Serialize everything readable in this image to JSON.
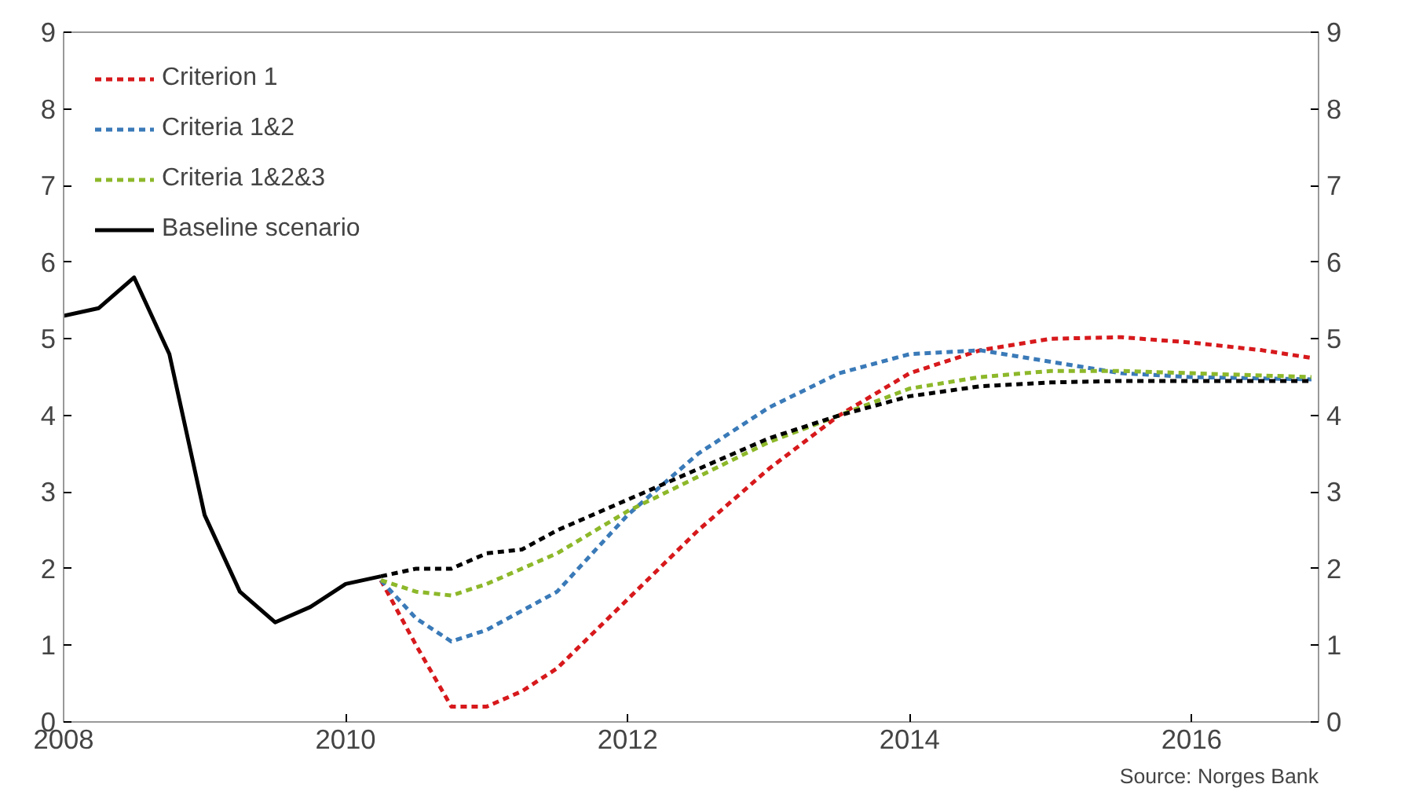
{
  "chart_data": {
    "type": "line",
    "xlim": [
      2008,
      2016.9
    ],
    "xticks": [
      2008,
      2010,
      2012,
      2014,
      2016
    ],
    "ylim": [
      0,
      9
    ],
    "yticks": [
      0,
      1,
      2,
      3,
      4,
      5,
      6,
      7,
      8,
      9
    ],
    "y2lim": [
      0,
      9
    ],
    "y2ticks": [
      0,
      1,
      2,
      3,
      4,
      5,
      6,
      7,
      8,
      9
    ],
    "grid": false,
    "legend": "top left",
    "annotations": [
      "Source: Norges Bank"
    ],
    "series": [
      {
        "name": "Criterion 1",
        "color": "#d7191c",
        "line_style": "dashed",
        "x": [
          2010.25,
          2010.5,
          2010.75,
          2011.0,
          2011.25,
          2011.5,
          2012,
          2012.5,
          2013,
          2013.5,
          2014,
          2014.5,
          2015,
          2015.5,
          2016,
          2016.5,
          2016.85
        ],
        "values": [
          1.85,
          1.0,
          0.2,
          0.2,
          0.4,
          0.7,
          1.6,
          2.5,
          3.3,
          4.0,
          4.55,
          4.85,
          5.0,
          5.02,
          4.95,
          4.85,
          4.75
        ]
      },
      {
        "name": "Criteria 1&2",
        "color": "#3a7ab8",
        "line_style": "dashed",
        "x": [
          2010.25,
          2010.5,
          2010.75,
          2011.0,
          2011.5,
          2012,
          2012.5,
          2013,
          2013.5,
          2014,
          2014.5,
          2015,
          2015.5,
          2016,
          2016.85
        ],
        "values": [
          1.85,
          1.35,
          1.05,
          1.2,
          1.7,
          2.7,
          3.5,
          4.1,
          4.55,
          4.8,
          4.85,
          4.7,
          4.55,
          4.5,
          4.47
        ]
      },
      {
        "name": "Criteria 1&2&3",
        "color": "#8db82a",
        "line_style": "dashed",
        "x": [
          2010.25,
          2010.5,
          2010.75,
          2011.0,
          2011.5,
          2012,
          2012.5,
          2013,
          2013.5,
          2014,
          2014.5,
          2015,
          2015.5,
          2016,
          2016.85
        ],
        "values": [
          1.85,
          1.7,
          1.65,
          1.8,
          2.2,
          2.75,
          3.2,
          3.65,
          4.0,
          4.35,
          4.5,
          4.58,
          4.58,
          4.55,
          4.5
        ]
      },
      {
        "name": "Baseline scenario",
        "color": "#000000",
        "line_style": "solid",
        "x": [
          2008.0,
          2008.25,
          2008.5,
          2008.75,
          2009.0,
          2009.25,
          2009.5,
          2009.75,
          2010.0,
          2010.25
        ],
        "values": [
          5.3,
          5.4,
          5.8,
          4.8,
          2.7,
          1.7,
          1.3,
          1.5,
          1.8,
          1.9
        ]
      },
      {
        "color": "#000000",
        "line_style": "dashed",
        "x": [
          2010.25,
          2010.5,
          2010.75,
          2011.0,
          2011.25,
          2011.5,
          2012,
          2012.5,
          2013,
          2013.5,
          2014,
          2014.5,
          2015,
          2015.5,
          2016,
          2016.85
        ],
        "values": [
          1.9,
          2.0,
          2.0,
          2.2,
          2.25,
          2.5,
          2.9,
          3.3,
          3.7,
          4.0,
          4.25,
          4.38,
          4.43,
          4.45,
          4.45,
          4.45
        ]
      }
    ]
  }
}
